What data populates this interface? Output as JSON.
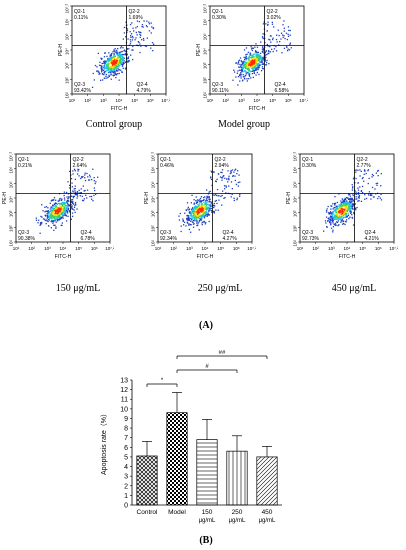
{
  "panel_a_tag": "(A)",
  "panel_b_tag": "(B)",
  "flow_plots": [
    {
      "group_label": "Control group",
      "q1": "Q2-1",
      "q1_pct": "0.11%",
      "q2": "Q2-2",
      "q2_pct": "1.69%",
      "q3": "Q2-3",
      "q3_pct": "93.42%",
      "q4": "Q2-4",
      "q4_pct": "4.79%"
    },
    {
      "group_label": "Model group",
      "q1": "Q2-1",
      "q1_pct": "0.30%",
      "q2": "Q2-2",
      "q2_pct": "3.02%",
      "q3": "Q2-3",
      "q3_pct": "90.11%",
      "q4": "Q2-4",
      "q4_pct": "6.58%"
    },
    {
      "group_label": "150 μg/mL",
      "q1": "Q2-1",
      "q1_pct": "0.21%",
      "q2": "Q2-2",
      "q2_pct": "2.64%",
      "q3": "Q2-3",
      "q3_pct": "90.38%",
      "q4": "Q2-4",
      "q4_pct": "6.78%"
    },
    {
      "group_label": "250 μg/mL",
      "q1": "Q2-1",
      "q1_pct": "0.46%",
      "q2": "Q2-2",
      "q2_pct": "2.94%",
      "q3": "Q2-3",
      "q3_pct": "92.34%",
      "q4": "Q2-4",
      "q4_pct": "4.27%"
    },
    {
      "group_label": "450 μg/mL",
      "q1": "Q2-1",
      "q1_pct": "0.30%",
      "q2": "Q2-2",
      "q2_pct": "2.77%",
      "q3": "Q2-3",
      "q3_pct": "92.73%",
      "q4": "Q2-4",
      "q4_pct": "4.21%"
    }
  ],
  "flow_axes": {
    "xlabel": "FITC-H",
    "ylabel": "PE-H",
    "ticks": [
      "10¹",
      "10²",
      "10³",
      "10⁴",
      "10⁵",
      "10⁶",
      "10⁷.²"
    ]
  },
  "chart_data": {
    "type": "bar",
    "categories": [
      "Control",
      "Model",
      "150 μg/mL",
      "250 μg/mL",
      "450 μg/mL"
    ],
    "values": [
      5.1,
      9.6,
      6.8,
      5.6,
      5.0
    ],
    "errors": [
      1.5,
      2.1,
      2.1,
      1.6,
      1.1
    ],
    "ylabel": "Apoptosis rate（%）",
    "ylim": [
      0,
      13
    ],
    "yticks": [
      0,
      1,
      2,
      3,
      4,
      5,
      6,
      7,
      8,
      9,
      10,
      11,
      12,
      13
    ],
    "patterns": [
      "crosshatch",
      "checker",
      "horizontal",
      "vertical",
      "diagonal"
    ],
    "significance": [
      {
        "from": 0,
        "to": 1,
        "label": "*"
      },
      {
        "from": 1,
        "to": 3,
        "label": "#"
      },
      {
        "from": 1,
        "to": 4,
        "label": "##"
      }
    ]
  }
}
